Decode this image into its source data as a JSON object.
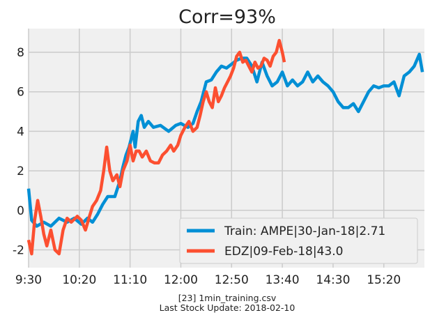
{
  "chart_data": {
    "type": "line",
    "title": "Corr=93%",
    "xlabel": "",
    "ylabel": "",
    "x_ticks": [
      "9:30",
      "10:20",
      "11:10",
      "12:00",
      "12:50",
      "13:40",
      "14:30",
      "15:20"
    ],
    "y_ticks": [
      -2,
      0,
      2,
      4,
      6,
      8
    ],
    "xlim": [
      "9:30",
      "16:00"
    ],
    "ylim": [
      -2.9,
      9.2
    ],
    "grid": true,
    "legend_position": "bottom-right",
    "series": [
      {
        "name": "Train: AMPE|30-Jan-18|2.71",
        "color": "#008fd5",
        "points": [
          [
            "9:30",
            1.1
          ],
          [
            "9:33",
            -0.5
          ],
          [
            "9:38",
            -0.8
          ],
          [
            "9:45",
            -0.6
          ],
          [
            "9:52",
            -0.8
          ],
          [
            "10:00",
            -0.4
          ],
          [
            "10:08",
            -0.6
          ],
          [
            "10:15",
            -0.4
          ],
          [
            "10:22",
            -0.7
          ],
          [
            "10:28",
            -0.4
          ],
          [
            "10:33",
            -0.6
          ],
          [
            "10:38",
            -0.2
          ],
          [
            "10:43",
            0.3
          ],
          [
            "10:48",
            0.7
          ],
          [
            "10:55",
            0.7
          ],
          [
            "11:00",
            1.5
          ],
          [
            "11:03",
            2.2
          ],
          [
            "11:06",
            2.8
          ],
          [
            "11:09",
            3.2
          ],
          [
            "11:13",
            4.0
          ],
          [
            "11:15",
            3.2
          ],
          [
            "11:18",
            4.5
          ],
          [
            "11:21",
            4.8
          ],
          [
            "11:24",
            4.2
          ],
          [
            "11:28",
            4.5
          ],
          [
            "11:33",
            4.2
          ],
          [
            "11:40",
            4.3
          ],
          [
            "11:48",
            4.0
          ],
          [
            "11:55",
            4.3
          ],
          [
            "12:00",
            4.4
          ],
          [
            "12:07",
            4.2
          ],
          [
            "12:12",
            4.4
          ],
          [
            "12:16",
            5.0
          ],
          [
            "12:20",
            5.5
          ],
          [
            "12:25",
            6.5
          ],
          [
            "12:30",
            6.6
          ],
          [
            "12:35",
            7.0
          ],
          [
            "12:40",
            7.3
          ],
          [
            "12:45",
            7.2
          ],
          [
            "12:50",
            7.4
          ],
          [
            "12:55",
            7.6
          ],
          [
            "13:00",
            7.7
          ],
          [
            "13:05",
            7.7
          ],
          [
            "13:10",
            7.3
          ],
          [
            "13:15",
            6.5
          ],
          [
            "13:20",
            7.5
          ],
          [
            "13:25",
            6.8
          ],
          [
            "13:30",
            6.3
          ],
          [
            "13:35",
            6.5
          ],
          [
            "13:40",
            7.0
          ],
          [
            "13:45",
            6.3
          ],
          [
            "13:50",
            6.6
          ],
          [
            "13:55",
            6.3
          ],
          [
            "14:00",
            6.5
          ],
          [
            "14:05",
            7.0
          ],
          [
            "14:10",
            6.5
          ],
          [
            "14:15",
            6.8
          ],
          [
            "14:20",
            6.5
          ],
          [
            "14:25",
            6.3
          ],
          [
            "14:30",
            6.0
          ],
          [
            "14:35",
            5.5
          ],
          [
            "14:40",
            5.2
          ],
          [
            "14:45",
            5.2
          ],
          [
            "14:50",
            5.4
          ],
          [
            "14:55",
            5.0
          ],
          [
            "15:00",
            5.5
          ],
          [
            "15:05",
            6.0
          ],
          [
            "15:10",
            6.3
          ],
          [
            "15:15",
            6.2
          ],
          [
            "15:20",
            6.3
          ],
          [
            "15:25",
            6.3
          ],
          [
            "15:30",
            6.5
          ],
          [
            "15:35",
            5.8
          ],
          [
            "15:40",
            6.8
          ],
          [
            "15:45",
            7.0
          ],
          [
            "15:50",
            7.3
          ],
          [
            "15:55",
            7.9
          ],
          [
            "15:58",
            7.0
          ]
        ]
      },
      {
        "name": "EDZ|09-Feb-18|43.0",
        "color": "#fc4f30",
        "points": [
          [
            "9:30",
            -1.5
          ],
          [
            "9:33",
            -2.2
          ],
          [
            "9:36",
            -0.5
          ],
          [
            "9:39",
            0.5
          ],
          [
            "9:42",
            -0.3
          ],
          [
            "9:45",
            -1.2
          ],
          [
            "9:48",
            -1.8
          ],
          [
            "9:52",
            -1.0
          ],
          [
            "9:56",
            -2.0
          ],
          [
            "10:00",
            -2.2
          ],
          [
            "10:04",
            -1.0
          ],
          [
            "10:08",
            -0.4
          ],
          [
            "10:12",
            -0.6
          ],
          [
            "10:18",
            -0.3
          ],
          [
            "10:22",
            -0.5
          ],
          [
            "10:26",
            -1.0
          ],
          [
            "10:30",
            -0.3
          ],
          [
            "10:33",
            0.2
          ],
          [
            "10:37",
            0.5
          ],
          [
            "10:41",
            1.0
          ],
          [
            "10:44",
            2.0
          ],
          [
            "10:47",
            3.2
          ],
          [
            "10:50",
            2.0
          ],
          [
            "10:53",
            1.5
          ],
          [
            "10:57",
            1.8
          ],
          [
            "11:00",
            1.2
          ],
          [
            "11:03",
            2.0
          ],
          [
            "11:07",
            2.5
          ],
          [
            "11:10",
            3.3
          ],
          [
            "11:13",
            2.5
          ],
          [
            "11:16",
            3.0
          ],
          [
            "11:19",
            3.0
          ],
          [
            "11:22",
            2.7
          ],
          [
            "11:26",
            3.0
          ],
          [
            "11:30",
            2.5
          ],
          [
            "11:34",
            2.4
          ],
          [
            "11:38",
            2.4
          ],
          [
            "11:42",
            2.8
          ],
          [
            "11:46",
            3.0
          ],
          [
            "11:50",
            3.3
          ],
          [
            "11:53",
            3.0
          ],
          [
            "11:57",
            3.3
          ],
          [
            "12:00",
            3.8
          ],
          [
            "12:04",
            4.2
          ],
          [
            "12:08",
            4.5
          ],
          [
            "12:12",
            4.0
          ],
          [
            "12:16",
            4.2
          ],
          [
            "12:19",
            4.8
          ],
          [
            "12:22",
            5.5
          ],
          [
            "12:25",
            6.0
          ],
          [
            "12:28",
            5.5
          ],
          [
            "12:31",
            5.2
          ],
          [
            "12:34",
            6.2
          ],
          [
            "12:37",
            5.5
          ],
          [
            "12:40",
            5.8
          ],
          [
            "12:43",
            6.2
          ],
          [
            "12:46",
            6.5
          ],
          [
            "12:49",
            6.8
          ],
          [
            "12:52",
            7.2
          ],
          [
            "12:55",
            7.8
          ],
          [
            "12:58",
            8.0
          ],
          [
            "13:01",
            7.5
          ],
          [
            "13:04",
            7.6
          ],
          [
            "13:07",
            7.3
          ],
          [
            "13:10",
            7.0
          ],
          [
            "13:13",
            7.5
          ],
          [
            "13:16",
            7.2
          ],
          [
            "13:19",
            7.3
          ],
          [
            "13:22",
            7.7
          ],
          [
            "13:25",
            7.6
          ],
          [
            "13:28",
            7.3
          ],
          [
            "13:31",
            7.8
          ],
          [
            "13:34",
            8.0
          ],
          [
            "13:37",
            8.6
          ],
          [
            "13:40",
            8.0
          ],
          [
            "13:42",
            7.5
          ]
        ]
      }
    ]
  },
  "footer": {
    "line1": "[23] 1min_training.csv",
    "line2": "Last Stock Update: 2018-02-10"
  }
}
